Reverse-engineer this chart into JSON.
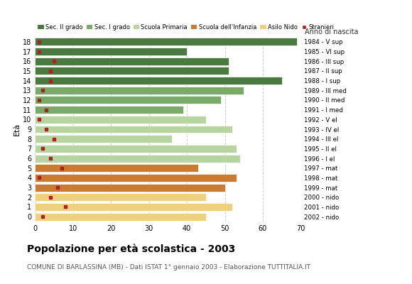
{
  "ages": [
    18,
    17,
    16,
    15,
    14,
    13,
    12,
    11,
    10,
    9,
    8,
    7,
    6,
    5,
    4,
    3,
    2,
    1,
    0
  ],
  "anno_nascita": [
    "1984 - V sup",
    "1985 - VI sup",
    "1986 - III sup",
    "1987 - II sup",
    "1988 - I sup",
    "1989 - III med",
    "1990 - II med",
    "1991 - I med",
    "1992 - V el",
    "1993 - IV el",
    "1994 - III el",
    "1995 - II el",
    "1996 - I el",
    "1997 - mat",
    "1998 - mat",
    "1999 - mat",
    "2000 - nido",
    "2001 - nido",
    "2002 - nido"
  ],
  "bar_values": [
    69,
    40,
    51,
    51,
    65,
    55,
    49,
    39,
    45,
    52,
    36,
    53,
    54,
    43,
    53,
    50,
    45,
    52,
    45
  ],
  "stranieri": [
    1,
    1,
    5,
    4,
    4,
    2,
    1,
    3,
    1,
    3,
    5,
    2,
    4,
    7,
    1,
    6,
    4,
    8,
    2
  ],
  "bar_colors": [
    "#4a7a3f",
    "#4a7a3f",
    "#4a7a3f",
    "#4a7a3f",
    "#4a7a3f",
    "#7aaa6a",
    "#7aaa6a",
    "#7aaa6a",
    "#b8d4a0",
    "#b8d4a0",
    "#b8d4a0",
    "#b8d4a0",
    "#b8d4a0",
    "#cc7a30",
    "#cc7a30",
    "#cc7a30",
    "#f0d080",
    "#f0d080",
    "#f0d080"
  ],
  "legend_colors": [
    "#4a7a3f",
    "#7aaa6a",
    "#b8d4a0",
    "#cc7a30",
    "#f0d080",
    "#aa2222"
  ],
  "legend_labels": [
    "Sec. II grado",
    "Sec. I grado",
    "Scuola Primaria",
    "Scuola dell'Infanzia",
    "Asilo Nido",
    "Stranieri"
  ],
  "title": "Popolazione per età scolastica - 2003",
  "subtitle": "COMUNE DI BARLASSINA (MB) - Dati ISTAT 1° gennaio 2003 - Elaborazione TUTTITALIA.IT",
  "ylabel": "Età",
  "xlim": [
    0,
    70
  ],
  "xticks": [
    0,
    10,
    20,
    30,
    40,
    50,
    60,
    70
  ],
  "background_color": "#ffffff",
  "grid_color": "#cccccc",
  "stranieri_color": "#aa2222",
  "anno_label": "Anno di nascita"
}
